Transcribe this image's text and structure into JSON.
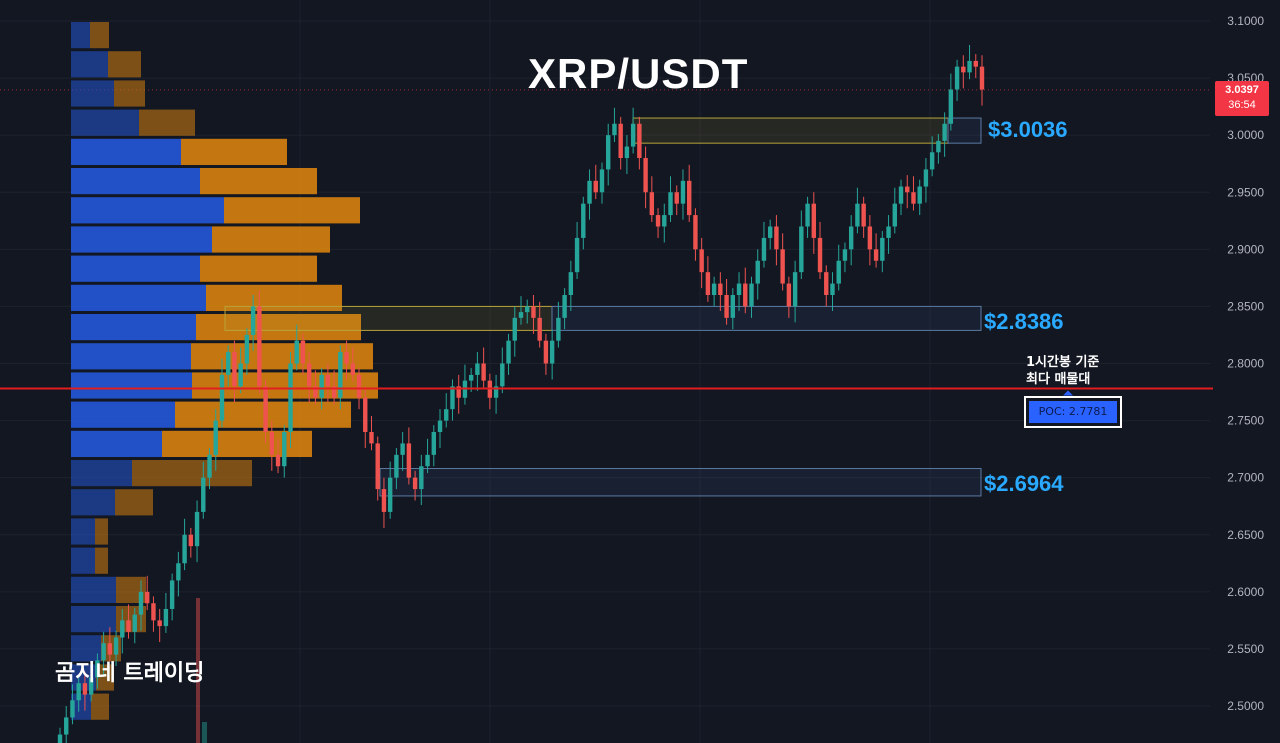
{
  "title": "XRP/USDT",
  "watermark": "곰지네 트레이딩",
  "colors": {
    "background": "#131722",
    "bull": "#26a69a",
    "bear": "#ef5350",
    "vp_up": "#2457d6",
    "vp_down": "#d4800f",
    "poc_line": "#e01e1e",
    "level_text": "#29a9ff"
  },
  "current_price": {
    "value": "3.0397",
    "countdown": "36:54"
  },
  "levels": [
    {
      "label": "$3.0036"
    },
    {
      "label": "$2.8386"
    },
    {
      "label": "$2.6964"
    }
  ],
  "poc": {
    "note_line1": "1시간봉 기준",
    "note_line2": "최다 매물대",
    "label": "POC: 2.7781",
    "value": 2.7781
  },
  "chart_data": {
    "type": "candlestick",
    "title": "XRP/USDT",
    "y_axis": {
      "ylim": [
        2.47,
        3.105
      ],
      "tick_labels": [
        "3.1000",
        "3.0500",
        "3.0000",
        "2.9500",
        "2.9000",
        "2.8500",
        "2.8000",
        "2.7500",
        "2.7000",
        "2.6500",
        "2.6000",
        "2.5500",
        "2.5000"
      ],
      "tick_values": [
        3.1,
        3.05,
        3.0,
        2.95,
        2.9,
        2.85,
        2.8,
        2.75,
        2.7,
        2.65,
        2.6,
        2.55,
        2.5
      ]
    },
    "grid": true,
    "closes": [
      2.475,
      2.49,
      2.505,
      2.52,
      2.51,
      2.525,
      2.54,
      2.555,
      2.545,
      2.56,
      2.575,
      2.565,
      2.58,
      2.6,
      2.59,
      2.575,
      2.57,
      2.585,
      2.61,
      2.625,
      2.65,
      2.64,
      2.67,
      2.7,
      2.72,
      2.75,
      2.79,
      2.81,
      2.78,
      2.8,
      2.825,
      2.85,
      2.78,
      2.74,
      2.72,
      2.71,
      2.74,
      2.8,
      2.82,
      2.8,
      2.78,
      2.77,
      2.79,
      2.78,
      2.77,
      2.81,
      2.8,
      2.79,
      2.77,
      2.74,
      2.73,
      2.69,
      2.67,
      2.7,
      2.72,
      2.73,
      2.7,
      2.69,
      2.71,
      2.72,
      2.74,
      2.75,
      2.76,
      2.78,
      2.77,
      2.785,
      2.79,
      2.8,
      2.785,
      2.77,
      2.78,
      2.8,
      2.82,
      2.84,
      2.845,
      2.85,
      2.84,
      2.82,
      2.8,
      2.82,
      2.84,
      2.86,
      2.88,
      2.91,
      2.94,
      2.96,
      2.95,
      2.97,
      3.0,
      3.01,
      2.98,
      2.99,
      3.01,
      2.98,
      2.95,
      2.93,
      2.92,
      2.93,
      2.95,
      2.94,
      2.96,
      2.93,
      2.9,
      2.88,
      2.86,
      2.87,
      2.86,
      2.84,
      2.86,
      2.87,
      2.85,
      2.87,
      2.89,
      2.91,
      2.92,
      2.9,
      2.87,
      2.85,
      2.88,
      2.92,
      2.94,
      2.91,
      2.88,
      2.86,
      2.87,
      2.89,
      2.9,
      2.92,
      2.94,
      2.92,
      2.9,
      2.89,
      2.91,
      2.92,
      2.94,
      2.955,
      2.95,
      2.94,
      2.955,
      2.97,
      2.985,
      2.995,
      3.01,
      3.04,
      3.06,
      3.055,
      3.065,
      3.06,
      3.04
    ],
    "volume_profile": {
      "rows_from_top": [
        {
          "up": 19,
          "down": 19
        },
        {
          "up": 37,
          "down": 33
        },
        {
          "up": 43,
          "down": 31
        },
        {
          "up": 68,
          "down": 56
        },
        {
          "up": 110,
          "down": 106
        },
        {
          "up": 129,
          "down": 117
        },
        {
          "up": 153,
          "down": 136
        },
        {
          "up": 141,
          "down": 118
        },
        {
          "up": 129,
          "down": 117
        },
        {
          "up": 135,
          "down": 136
        },
        {
          "up": 125,
          "down": 165
        },
        {
          "up": 120,
          "down": 182
        },
        {
          "up": 121,
          "down": 186
        },
        {
          "up": 104,
          "down": 176
        },
        {
          "up": 91,
          "down": 150
        },
        {
          "up": 61,
          "down": 120
        },
        {
          "up": 44,
          "down": 38
        },
        {
          "up": 24,
          "down": 13
        },
        {
          "up": 24,
          "down": 13
        },
        {
          "up": 45,
          "down": 30
        },
        {
          "up": 45,
          "down": 30
        },
        {
          "up": 30,
          "down": 20
        },
        {
          "up": 25,
          "down": 18
        },
        {
          "up": 20,
          "down": 18
        }
      ]
    }
  }
}
